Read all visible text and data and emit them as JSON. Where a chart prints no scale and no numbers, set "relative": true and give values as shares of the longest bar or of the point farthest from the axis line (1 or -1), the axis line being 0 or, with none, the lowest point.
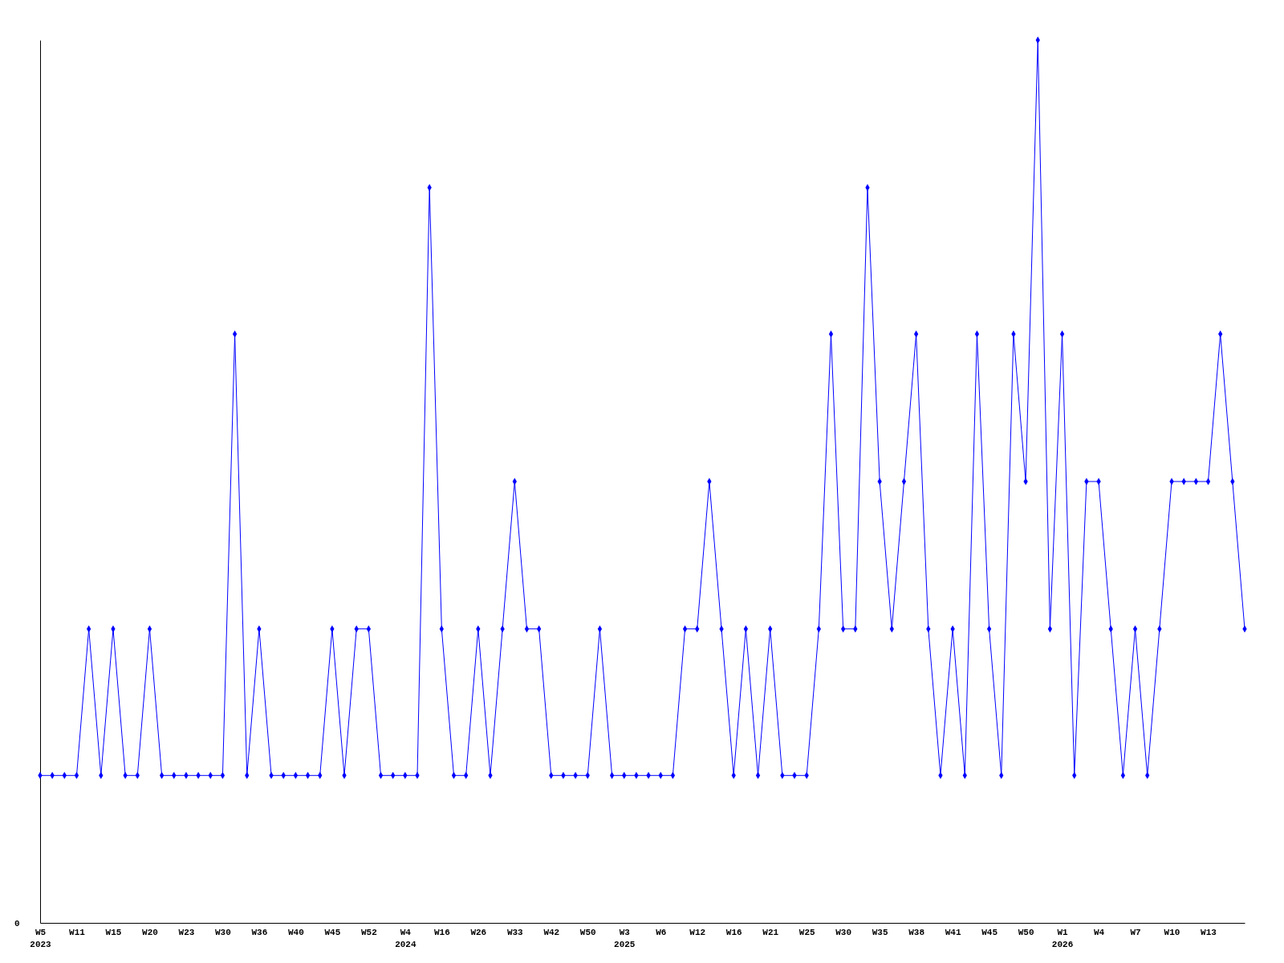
{
  "chart_data": {
    "type": "line",
    "relative": true,
    "marker": "diamond",
    "line_style": "solid",
    "grid": false,
    "annotations": [
      "0"
    ],
    "categories": [
      "W5\n2023",
      null,
      null,
      "W11",
      null,
      null,
      "W15",
      null,
      null,
      "W20",
      null,
      null,
      "W23",
      null,
      null,
      "W30",
      null,
      null,
      "W36",
      null,
      null,
      "W40",
      null,
      null,
      "W45",
      null,
      null,
      "W52",
      null,
      null,
      "W4\n2024",
      null,
      null,
      "W16",
      null,
      null,
      "W26",
      null,
      null,
      "W33",
      null,
      null,
      "W42",
      null,
      null,
      "W50",
      null,
      null,
      "W3\n2025",
      null,
      null,
      "W6",
      null,
      null,
      "W12",
      null,
      null,
      "W16",
      null,
      null,
      "W21",
      null,
      null,
      "W25",
      null,
      null,
      "W30",
      null,
      null,
      "W35",
      null,
      null,
      "W38",
      null,
      null,
      "W41",
      null,
      null,
      "W45",
      null,
      null,
      "W50",
      null,
      null,
      "W1\n2026",
      null,
      null,
      "W4",
      null,
      null,
      "W7",
      null,
      null,
      "W10",
      null,
      null,
      "W13",
      null,
      null,
      null
    ],
    "series": [
      {
        "color": "#0000ff",
        "values": [
          0.167,
          0.167,
          0.167,
          0.167,
          0.333,
          0.167,
          0.333,
          0.167,
          0.167,
          0.333,
          0.167,
          0.167,
          0.167,
          0.167,
          0.167,
          0.167,
          0.667,
          0.167,
          0.333,
          0.167,
          0.167,
          0.167,
          0.167,
          0.167,
          0.333,
          0.167,
          0.333,
          0.333,
          0.167,
          0.167,
          0.167,
          0.167,
          0.833,
          0.333,
          0.167,
          0.167,
          0.333,
          0.167,
          0.333,
          0.5,
          0.333,
          0.333,
          0.167,
          0.167,
          0.167,
          0.167,
          0.333,
          0.167,
          0.167,
          0.167,
          0.167,
          0.167,
          0.167,
          0.333,
          0.333,
          0.5,
          0.333,
          0.167,
          0.333,
          0.167,
          0.333,
          0.167,
          0.167,
          0.167,
          0.333,
          0.667,
          0.333,
          0.333,
          0.833,
          0.5,
          0.333,
          0.5,
          0.667,
          0.333,
          0.167,
          0.333,
          0.167,
          0.667,
          0.333,
          0.167,
          0.667,
          0.5,
          1,
          0.333,
          0.667,
          0.167,
          0.5,
          0.5,
          0.333,
          0.167,
          0.333,
          0.167,
          0.333,
          0.5,
          0.5,
          0.5,
          0.5,
          0.667,
          0.5,
          0.333
        ]
      }
    ]
  }
}
